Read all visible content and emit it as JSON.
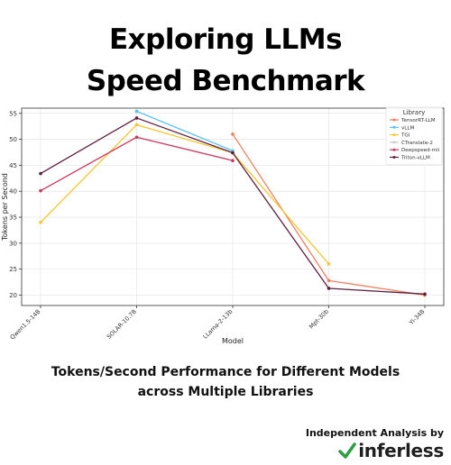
{
  "header": {
    "title_line1": "Exploring LLMs",
    "title_line2": "Speed Benchmark"
  },
  "caption": {
    "line1": "Tokens/Second Performance for Different Models",
    "line2": "across Multiple Libraries"
  },
  "footer": {
    "label": "Independent Analysis by",
    "brand": "inferless",
    "brand_color": "#2f9e44"
  },
  "chart_data": {
    "type": "line",
    "xlabel": "Model",
    "ylabel": "Tokens per Second",
    "categories": [
      "Qwen1.5-14B",
      "SOLAR-10.7B",
      "LLama-2-13b",
      "Mpt-30b",
      "Yi-34B"
    ],
    "ylim": [
      18,
      56
    ],
    "yticks": [
      20,
      25,
      30,
      35,
      40,
      45,
      50,
      55
    ],
    "grid": true,
    "legend": {
      "title": "Library",
      "placement": "top-right"
    },
    "series": [
      {
        "name": "TensorRT-LLM",
        "color": "#f07f5f",
        "values": [
          null,
          null,
          51.0,
          22.8,
          20.0
        ]
      },
      {
        "name": "vLLM",
        "color": "#56c1f0",
        "values": [
          null,
          55.4,
          47.8,
          null,
          null
        ]
      },
      {
        "name": "TGI",
        "color": "#f7c531",
        "values": [
          34.0,
          52.8,
          47.4,
          26.0,
          null
        ]
      },
      {
        "name": "CTranslate-2",
        "color": "#cccccc",
        "values": [
          null,
          null,
          null,
          null,
          null
        ]
      },
      {
        "name": "Deepspeed-mii",
        "color": "#c8385e",
        "values": [
          40.1,
          50.4,
          45.9,
          null,
          null
        ]
      },
      {
        "name": "Triton-vLLM",
        "color": "#5e1f3d",
        "values": [
          43.4,
          54.1,
          47.4,
          21.3,
          20.2
        ]
      }
    ]
  }
}
